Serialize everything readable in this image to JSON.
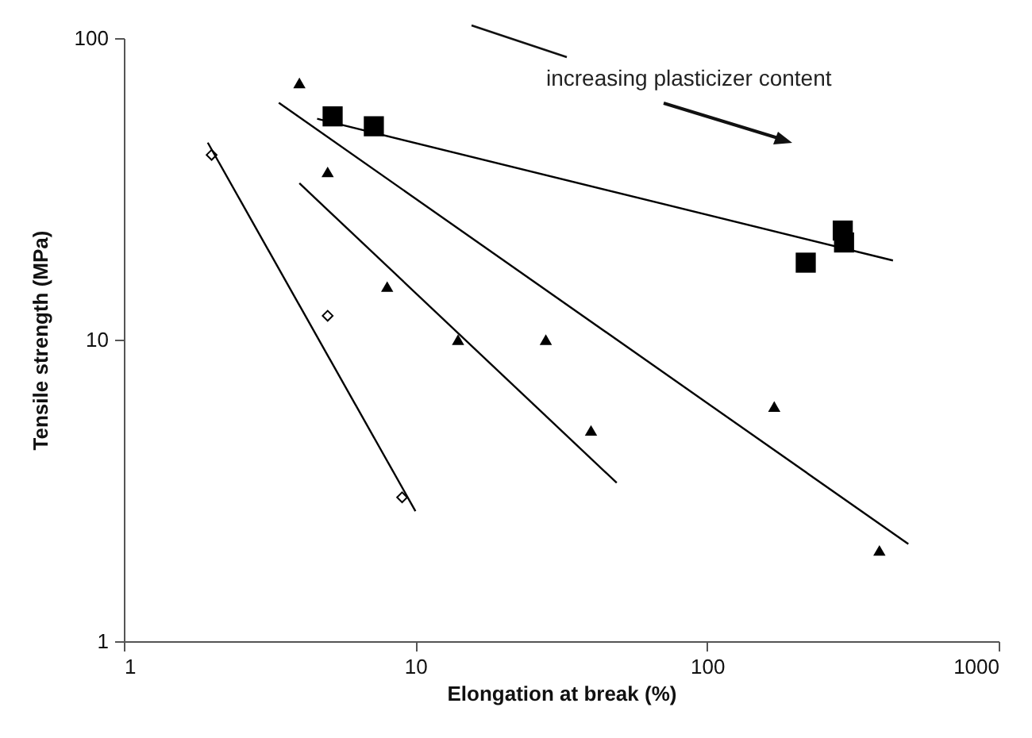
{
  "chart_data": {
    "type": "scatter",
    "xlabel": "Elongation at break (%)",
    "ylabel": "Tensile strength (MPa)",
    "annotations": [
      "increasing plasticizer content"
    ],
    "log": "xy",
    "xlim": [
      1,
      1000
    ],
    "xticks": [
      1,
      10,
      100,
      1000
    ],
    "ylim": [
      1,
      100
    ],
    "yticks": [
      1,
      10,
      100
    ],
    "grid": false,
    "series": [
      {
        "marker": "diamond",
        "color": "#000000",
        "x": [
          2,
          5,
          9
        ],
        "values": [
          41,
          12,
          3
        ]
      },
      {
        "marker": "triangle",
        "color": "#000000",
        "x": [
          5,
          8,
          14,
          40
        ],
        "values": [
          36,
          15,
          10,
          5
        ]
      },
      {
        "marker": "triangle",
        "color": "#000000",
        "x": [
          4,
          28,
          170,
          390
        ],
        "values": [
          71,
          10,
          6,
          2
        ]
      },
      {
        "marker": "square",
        "color": "#000000",
        "x": [
          5.2,
          7.2,
          218,
          292,
          295
        ],
        "values": [
          55,
          51,
          18,
          23,
          21
        ]
      },
      {
        "type": "line",
        "marker": "none",
        "color": "#000000",
        "x": [
          1.94,
          10
        ],
        "values": [
          45,
          2.7
        ]
      },
      {
        "type": "line",
        "marker": "none",
        "color": "#000000",
        "x": [
          4,
          49
        ],
        "values": [
          33,
          3.35
        ]
      },
      {
        "type": "line",
        "marker": "none",
        "color": "#000000",
        "x": [
          3.4,
          490
        ],
        "values": [
          61,
          2.1
        ]
      },
      {
        "type": "line",
        "marker": "none",
        "color": "#000000",
        "x": [
          4.6,
          434
        ],
        "values": [
          54,
          18.3
        ]
      }
    ]
  }
}
